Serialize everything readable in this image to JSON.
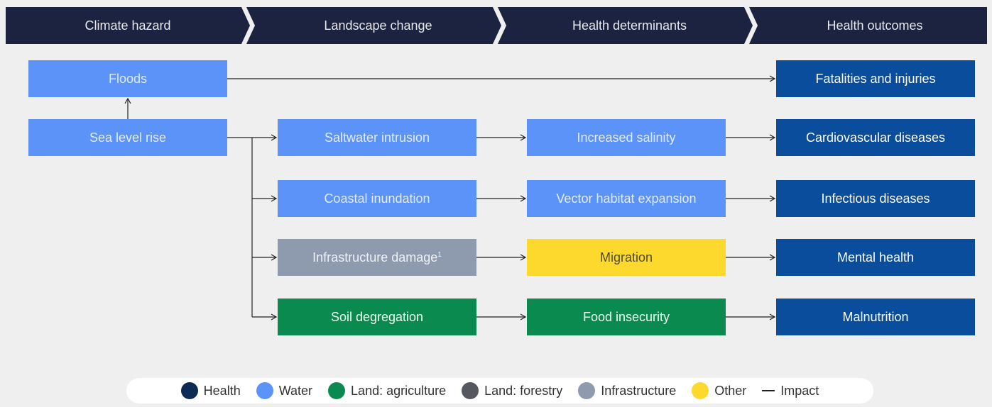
{
  "header": {
    "stages": [
      "Climate hazard",
      "Landscape change",
      "Health determinants",
      "Health outcomes"
    ]
  },
  "nodes": {
    "floods": "Floods",
    "sea_level_rise": "Sea level rise",
    "saltwater_intrusion": "Saltwater intrusion",
    "coastal_inundation": "Coastal inundation",
    "infrastructure_damage": {
      "label": "Infrastructure damage",
      "footnote": "1"
    },
    "soil_degregation": "Soil degregation",
    "increased_salinity": "Increased salinity",
    "vector_habitat_expansion": "Vector habitat expansion",
    "migration": "Migration",
    "food_insecurity": "Food insecurity",
    "fatalities_and_injuries": "Fatalities and injuries",
    "cardiovascular_diseases": "Cardiovascular diseases",
    "infectious_diseases": "Infectious diseases",
    "mental_health": "Mental health",
    "malnutrition": "Malnutrition"
  },
  "legend": {
    "items": [
      "Health",
      "Water",
      "Land: agriculture",
      "Land: forestry",
      "Infrastructure",
      "Other"
    ],
    "impact": "Impact"
  }
}
